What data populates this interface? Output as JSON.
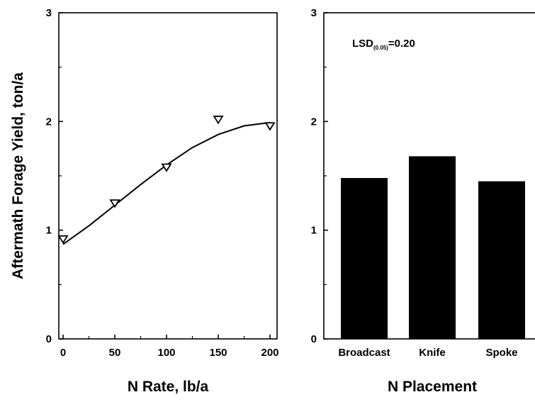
{
  "chart_data": [
    {
      "type": "scatter",
      "ylabel": "Aftermath Forage Yield, ton/a",
      "xlabel": "N Rate, lb/a",
      "xlim": [
        0,
        200
      ],
      "ylim": [
        0,
        3
      ],
      "x_ticks": [
        "0",
        "50",
        "100",
        "150",
        "200"
      ],
      "y_ticks": [
        "0",
        "1",
        "2",
        "3"
      ],
      "marker": "open-down-triangle",
      "points": [
        {
          "x": 0,
          "y": 0.92
        },
        {
          "x": 50,
          "y": 1.25
        },
        {
          "x": 100,
          "y": 1.58
        },
        {
          "x": 150,
          "y": 2.02
        },
        {
          "x": 200,
          "y": 1.96
        }
      ],
      "fit_curve": {
        "kind": "quadratic",
        "x": [
          0,
          25,
          50,
          75,
          100,
          125,
          150,
          175,
          200
        ],
        "y": [
          0.87,
          1.04,
          1.23,
          1.42,
          1.6,
          1.76,
          1.88,
          1.96,
          1.99
        ]
      }
    },
    {
      "type": "bar",
      "xlabel": "N Placement",
      "ylim": [
        0,
        3
      ],
      "y_ticks": [
        "0",
        "1",
        "2",
        "3"
      ],
      "categories": [
        "Broadcast",
        "Knife",
        "Spoke"
      ],
      "values": [
        1.48,
        1.68,
        1.45
      ],
      "bar_color": "#000000",
      "annotation": {
        "main": "LSD",
        "sub": "(0.05)",
        "value": "=0.20"
      }
    }
  ]
}
